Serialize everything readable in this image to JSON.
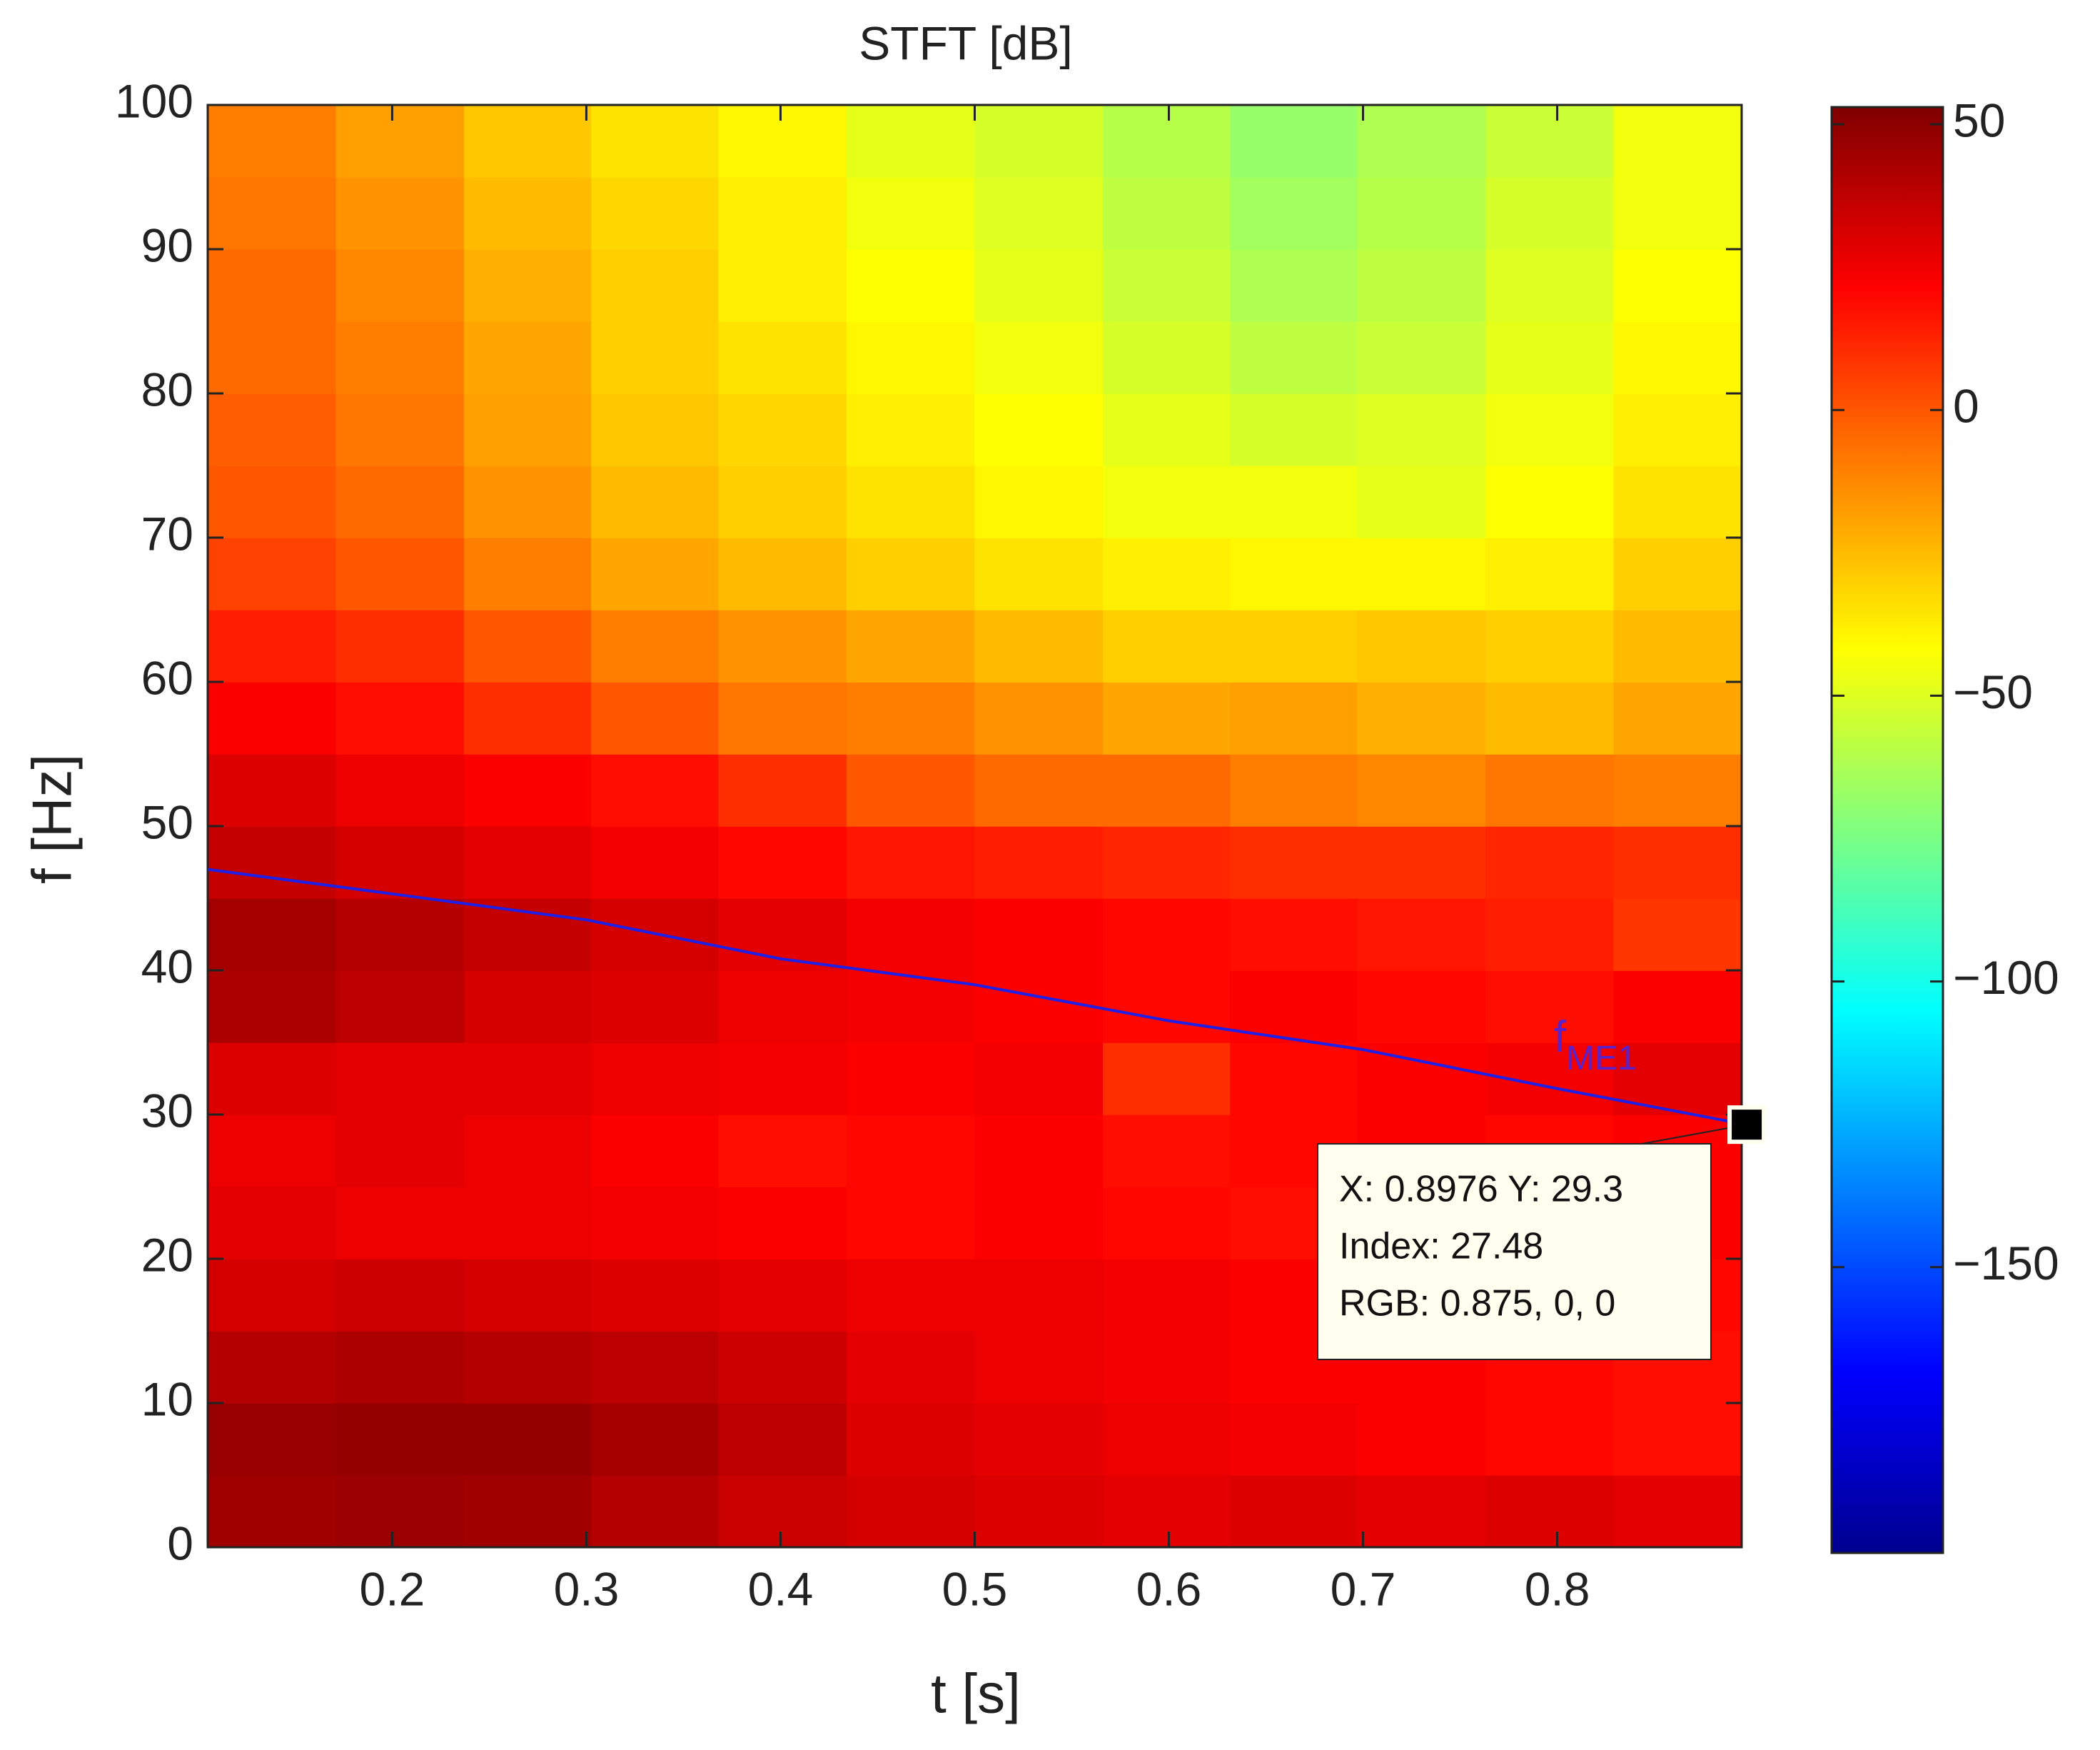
{
  "chart_data": {
    "type": "heatmap",
    "title": "STFT [dB]",
    "x_label": "t [s]",
    "y_label": "f [Hz]",
    "x": [
      0.138,
      0.204,
      0.27,
      0.335,
      0.401,
      0.467,
      0.533,
      0.599,
      0.664,
      0.73,
      0.796,
      0.862
    ],
    "y": [
      2.5,
      7.5,
      12.5,
      17.5,
      22.5,
      27.5,
      32.5,
      37.5,
      42.5,
      47.5,
      52.5,
      57.5,
      62.5,
      67.5,
      72.5,
      77.5,
      82.5,
      87.5,
      92.5,
      97.5
    ],
    "z": [
      [
        45,
        46,
        45,
        40,
        35,
        32,
        30,
        28,
        30,
        28,
        30,
        28
      ],
      [
        47,
        48,
        48,
        44,
        38,
        30,
        28,
        26,
        24,
        22,
        20,
        18
      ],
      [
        40,
        42,
        40,
        38,
        34,
        28,
        26,
        24,
        22,
        22,
        20,
        18
      ],
      [
        32,
        34,
        32,
        30,
        28,
        26,
        26,
        24,
        22,
        20,
        20,
        20
      ],
      [
        28,
        26,
        26,
        24,
        22,
        20,
        22,
        20,
        18,
        18,
        20,
        22
      ],
      [
        26,
        28,
        26,
        22,
        18,
        20,
        22,
        18,
        20,
        22,
        20,
        22
      ],
      [
        30,
        28,
        28,
        26,
        24,
        22,
        24,
        10,
        20,
        22,
        24,
        28
      ],
      [
        42,
        38,
        32,
        30,
        26,
        24,
        22,
        20,
        22,
        20,
        18,
        22
      ],
      [
        44,
        40,
        36,
        32,
        28,
        24,
        22,
        20,
        18,
        16,
        14,
        8
      ],
      [
        36,
        32,
        28,
        24,
        20,
        16,
        14,
        12,
        10,
        10,
        12,
        10
      ],
      [
        30,
        26,
        22,
        18,
        10,
        0,
        -5,
        -5,
        -10,
        -12,
        -8,
        -10
      ],
      [
        22,
        18,
        10,
        0,
        -8,
        -10,
        -15,
        -20,
        -18,
        -22,
        -25,
        -20
      ],
      [
        14,
        10,
        0,
        -10,
        -15,
        -20,
        -25,
        -30,
        -30,
        -28,
        -30,
        -25
      ],
      [
        5,
        0,
        -10,
        -20,
        -25,
        -30,
        -35,
        -38,
        -40,
        -40,
        -38,
        -30
      ],
      [
        0,
        -5,
        -15,
        -25,
        -30,
        -35,
        -40,
        -45,
        -45,
        -48,
        -42,
        -35
      ],
      [
        -2,
        -8,
        -18,
        -28,
        -32,
        -38,
        -42,
        -48,
        -52,
        -50,
        -45,
        -38
      ],
      [
        -5,
        -10,
        -20,
        -30,
        -35,
        -40,
        -45,
        -52,
        -58,
        -55,
        -48,
        -40
      ],
      [
        -5,
        -12,
        -22,
        -30,
        -38,
        -42,
        -48,
        -55,
        -62,
        -58,
        -50,
        -42
      ],
      [
        -8,
        -15,
        -25,
        -32,
        -38,
        -45,
        -50,
        -58,
        -65,
        -60,
        -52,
        -45
      ],
      [
        -10,
        -18,
        -28,
        -35,
        -40,
        -48,
        -52,
        -60,
        -68,
        -62,
        -55,
        -45
      ]
    ],
    "xlim": [
      0.105,
      0.895
    ],
    "ylim": [
      0,
      100
    ],
    "xticks": [
      0.2,
      0.3,
      0.4,
      0.5,
      0.6,
      0.7,
      0.8
    ],
    "yticks": [
      0,
      10,
      20,
      30,
      40,
      50,
      60,
      70,
      80,
      90,
      100
    ],
    "colormap": "jet",
    "clim": [
      -200,
      53
    ],
    "cticks": [
      {
        "value": -150,
        "label": "−150"
      },
      {
        "value": -100,
        "label": "−100"
      },
      {
        "value": -50,
        "label": "−50"
      },
      0,
      50
    ],
    "line": {
      "color": "#1f1fe6",
      "x": [
        0.105,
        0.2,
        0.3,
        0.4,
        0.5,
        0.6,
        0.7,
        0.8,
        0.8976
      ],
      "y": [
        47,
        45.3,
        43.5,
        40.8,
        39,
        36.5,
        34.5,
        31.8,
        29.3
      ]
    },
    "annotation": {
      "text": "f",
      "subscript": "ME1",
      "color": "#5a22cc"
    },
    "datatip": {
      "lines": [
        "X: 0.8976 Y: 29.3",
        "Index: 27.48",
        "RGB: 0.875, 0, 0"
      ]
    }
  }
}
